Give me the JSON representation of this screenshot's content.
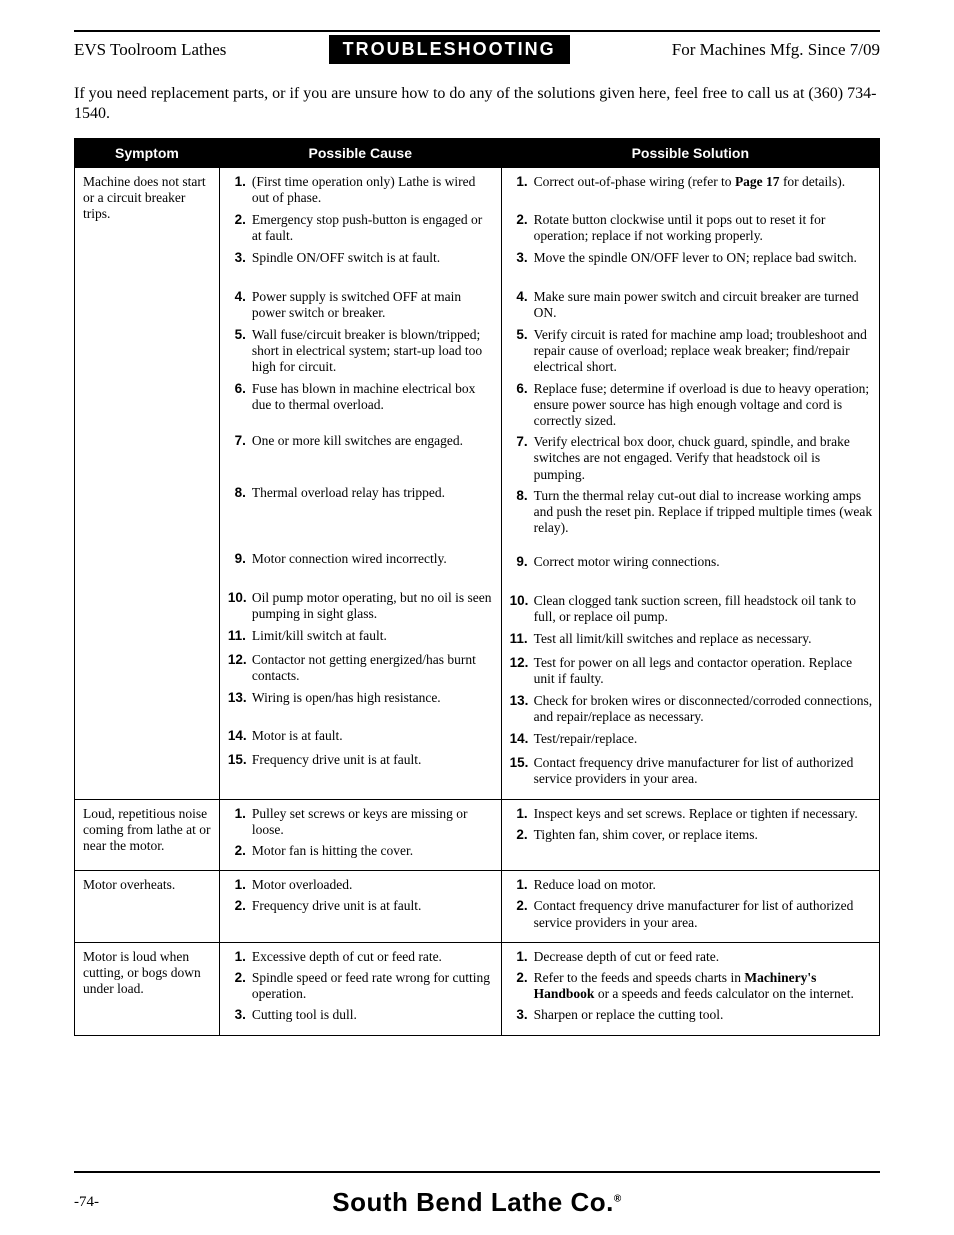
{
  "header": {
    "left": "EVS Toolroom Lathes",
    "center": "TROUBLESHOOTING",
    "right": "For Machines Mfg. Since 7/09"
  },
  "intro": "If you need replacement parts, or if you are unsure how to do any of the solutions given here, feel free to call us at (360) 734-1540.",
  "columns": [
    "Symptom",
    "Possible Cause",
    "Possible Solution"
  ],
  "rows": [
    {
      "symptom": "Machine does not start or a circuit breaker trips.",
      "causes": [
        "(First time operation only) Lathe is wired out of phase.",
        "Emergency stop push-button is engaged or at fault.",
        "Spindle ON/OFF switch is at fault.",
        "Power supply is switched OFF at main power switch or breaker.",
        "Wall fuse/circuit breaker is blown/tripped; short in electrical system; start-up load too high for circuit.",
        "Fuse has blown in machine electrical box due to thermal overload.",
        "One or more kill switches are engaged.",
        "Thermal overload relay has tripped.",
        "Motor connection wired incorrectly.",
        "Oil pump motor operating, but no oil is seen pumping in sight glass.",
        "Limit/kill switch at fault.",
        "Contactor not getting energized/has burnt contacts.",
        "Wiring is open/has high resistance.",
        "Motor is at fault.",
        "Frequency drive unit is at fault."
      ],
      "solutions": [
        "Correct out-of-phase wiring (refer to <b>Page 17</b> for details).",
        "Rotate button clockwise until it pops out to reset it for operation; replace if not working properly.",
        "Move the spindle ON/OFF lever to ON; replace bad switch.",
        "Make sure main power switch and circuit breaker are turned ON.",
        "Verify circuit is rated for machine amp load; troubleshoot and repair cause of overload; replace weak breaker; find/repair electrical short.",
        "Replace fuse; determine if overload is due to heavy operation; ensure power source has high enough voltage and cord is correctly sized.",
        "Verify electrical box door, chuck guard, spindle, and brake switches are not engaged. Verify that headstock oil is pumping.",
        "Turn the thermal relay cut-out dial to increase working amps and push the reset pin. Replace if tripped multiple times (weak relay).",
        "Correct motor wiring connections.",
        "Clean clogged tank suction screen, fill headstock oil tank to full, or replace oil pump.",
        "Test all limit/kill switches and replace as necessary.",
        "Test for power on all legs and contactor operation. Replace unit if faulty.",
        "Check for broken wires or disconnected/corroded connections, and repair/replace as necessary.",
        "Test/repair/replace.",
        "Contact frequency drive manufacturer for list of authorized service providers in your area."
      ]
    },
    {
      "symptom": "Loud, repetitious noise coming from lathe at or near the motor.",
      "causes": [
        "Pulley set screws or keys are missing or loose.",
        "Motor fan is hitting the cover."
      ],
      "solutions": [
        "Inspect keys and set screws. Replace or tighten if necessary.",
        "Tighten fan, shim cover, or replace items."
      ]
    },
    {
      "symptom": "Motor overheats.",
      "causes": [
        "Motor overloaded.",
        "Frequency drive unit is at fault."
      ],
      "solutions": [
        "Reduce load on motor.",
        "Contact frequency drive manufacturer for list of authorized service providers in your area."
      ]
    },
    {
      "symptom": "Motor is loud when cutting, or bogs down under load.",
      "causes": [
        "Excessive depth of cut or feed rate.",
        "Spindle speed or feed rate wrong for cutting operation.",
        "Cutting tool is dull."
      ],
      "solutions": [
        "Decrease depth of cut or feed rate.",
        "Refer to the feeds and speeds charts in <b>Machinery's Handbook</b> or a speeds and feeds calculator on the internet.",
        "Sharpen or replace the cutting tool."
      ]
    }
  ],
  "footer": {
    "page": "-74-",
    "brand": "South Bend Lathe Co."
  },
  "row0_heights": [
    33,
    33,
    34,
    33,
    47,
    47,
    47,
    61,
    34,
    33,
    19,
    33,
    33,
    19,
    33
  ]
}
